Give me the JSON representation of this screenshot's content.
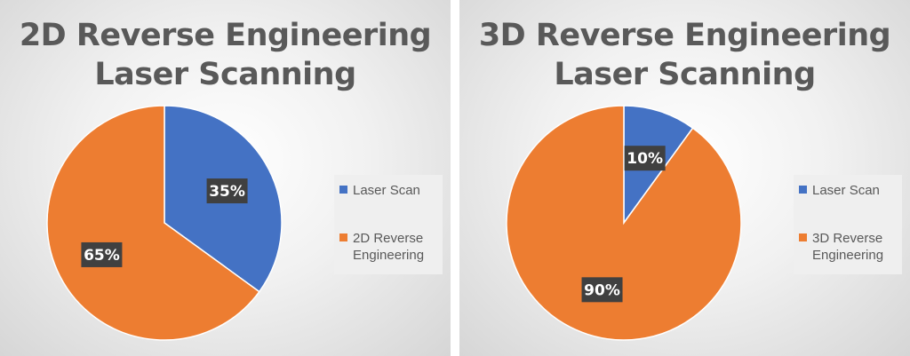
{
  "chart_data": [
    {
      "type": "pie",
      "title": [
        "2D Reverse Engineering",
        "Laser Scanning"
      ],
      "categories": [
        "Laser Scan",
        "2D Reverse Engineering"
      ],
      "values": [
        35,
        65
      ],
      "data_labels": [
        "35%",
        "65%"
      ],
      "colors": [
        "#4472C4",
        "#ED7D31"
      ],
      "legend": {
        "position": "right",
        "labels": [
          "Laser Scan",
          "2D Reverse\nEngineering"
        ]
      }
    },
    {
      "type": "pie",
      "title": [
        "3D Reverse Engineering",
        "Laser Scanning"
      ],
      "categories": [
        "Laser Scan",
        "3D Reverse Engineering"
      ],
      "values": [
        10,
        90
      ],
      "data_labels": [
        "10%",
        "90%"
      ],
      "colors": [
        "#4472C4",
        "#ED7D31"
      ],
      "legend": {
        "position": "right",
        "labels": [
          "Laser Scan",
          "3D Reverse\nEngineering"
        ]
      }
    }
  ]
}
